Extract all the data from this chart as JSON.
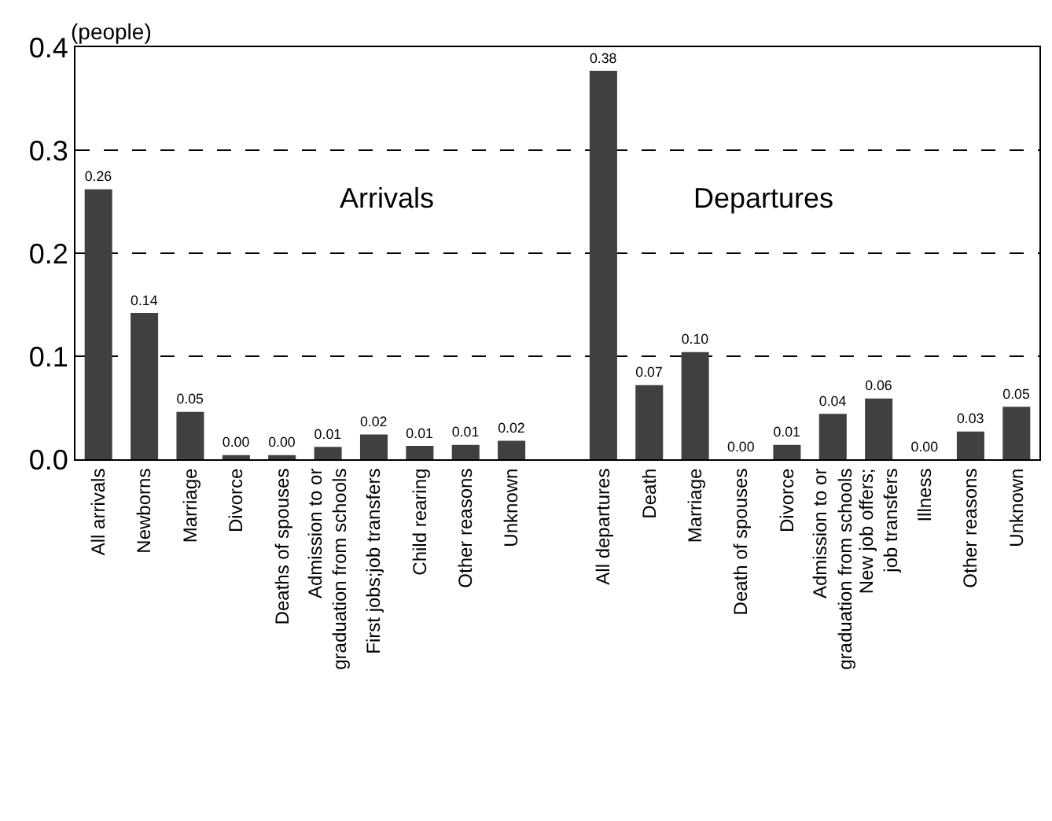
{
  "chart_data": {
    "type": "bar",
    "ylabel": "(people)",
    "categories": [
      "All arrivals",
      "Newborns",
      "Marriage",
      "Divorce",
      "Deaths of spouses",
      "Admission to or\ngraduation from schools",
      "First jobs;job transfers",
      "Child rearing",
      "Other reasons",
      "Unknown",
      null,
      "All departures",
      "Death",
      "Marriage",
      "Death of spouses",
      "Divorce",
      "Admission to or\ngraduation from schools",
      "New job offers;\njob transfers",
      "Illness",
      "Other reasons",
      "Unknown"
    ],
    "values": [
      0.262,
      0.142,
      0.046,
      0.004,
      0.004,
      0.012,
      0.024,
      0.013,
      0.014,
      0.018,
      null,
      0.377,
      0.072,
      0.104,
      0.0,
      0.014,
      0.044,
      0.059,
      0.0,
      0.027,
      0.051
    ],
    "value_labels": [
      "0.26",
      "0.14",
      "0.05",
      "0.00",
      "0.00",
      "0.01",
      "0.02",
      "0.01",
      "0.01",
      "0.02",
      null,
      "0.38",
      "0.07",
      "0.10",
      "0.00",
      "0.01",
      "0.04",
      "0.06",
      "0.00",
      "0.03",
      "0.05"
    ],
    "color": "#404040",
    "ylim": [
      0,
      0.4
    ],
    "yticks": [
      {
        "value": 0,
        "label": "0.0"
      },
      0.1,
      0.2,
      0.3,
      0.4
    ],
    "grid": "y",
    "annotations": [
      "Arrivals",
      "Departures"
    ]
  }
}
